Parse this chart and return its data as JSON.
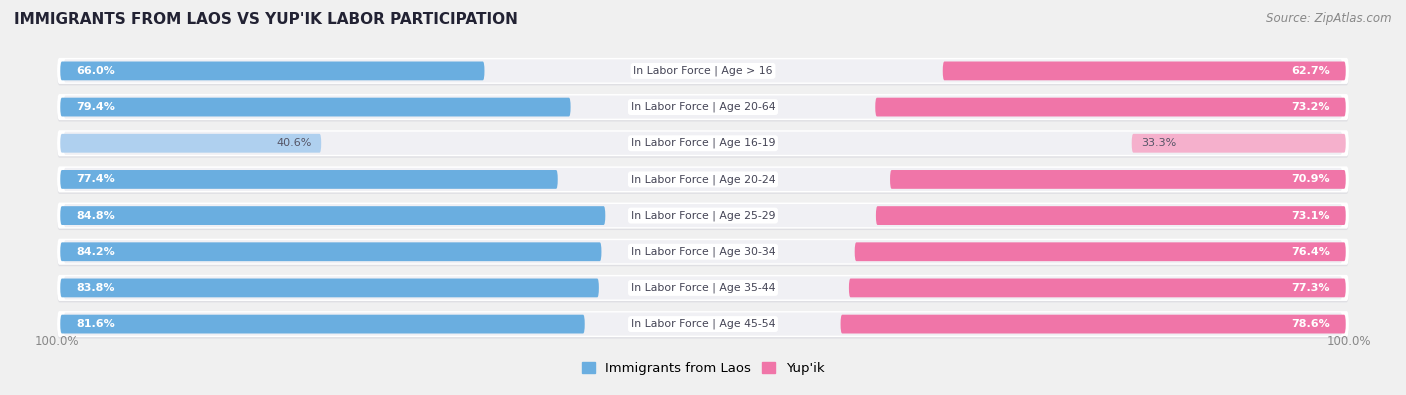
{
  "title": "IMMIGRANTS FROM LAOS VS YUP'IK LABOR PARTICIPATION",
  "source": "Source: ZipAtlas.com",
  "categories": [
    "In Labor Force | Age > 16",
    "In Labor Force | Age 20-64",
    "In Labor Force | Age 16-19",
    "In Labor Force | Age 20-24",
    "In Labor Force | Age 25-29",
    "In Labor Force | Age 30-34",
    "In Labor Force | Age 35-44",
    "In Labor Force | Age 45-54"
  ],
  "laos_values": [
    66.0,
    79.4,
    40.6,
    77.4,
    84.8,
    84.2,
    83.8,
    81.6
  ],
  "yupik_values": [
    62.7,
    73.2,
    33.3,
    70.9,
    73.1,
    76.4,
    77.3,
    78.6
  ],
  "laos_color": "#6aaee0",
  "laos_color_light": "#afd0ef",
  "yupik_color": "#f075a8",
  "yupik_color_light": "#f5b0cc",
  "bg_color": "#f0f0f0",
  "row_bg": "#e8e8ec",
  "row_shadow": "#d0d0d8",
  "label_color_white": "#ffffff",
  "label_color_dark": "#555566",
  "max_value": 100.0,
  "legend_laos": "Immigrants from Laos",
  "legend_yupik": "Yup'ik"
}
